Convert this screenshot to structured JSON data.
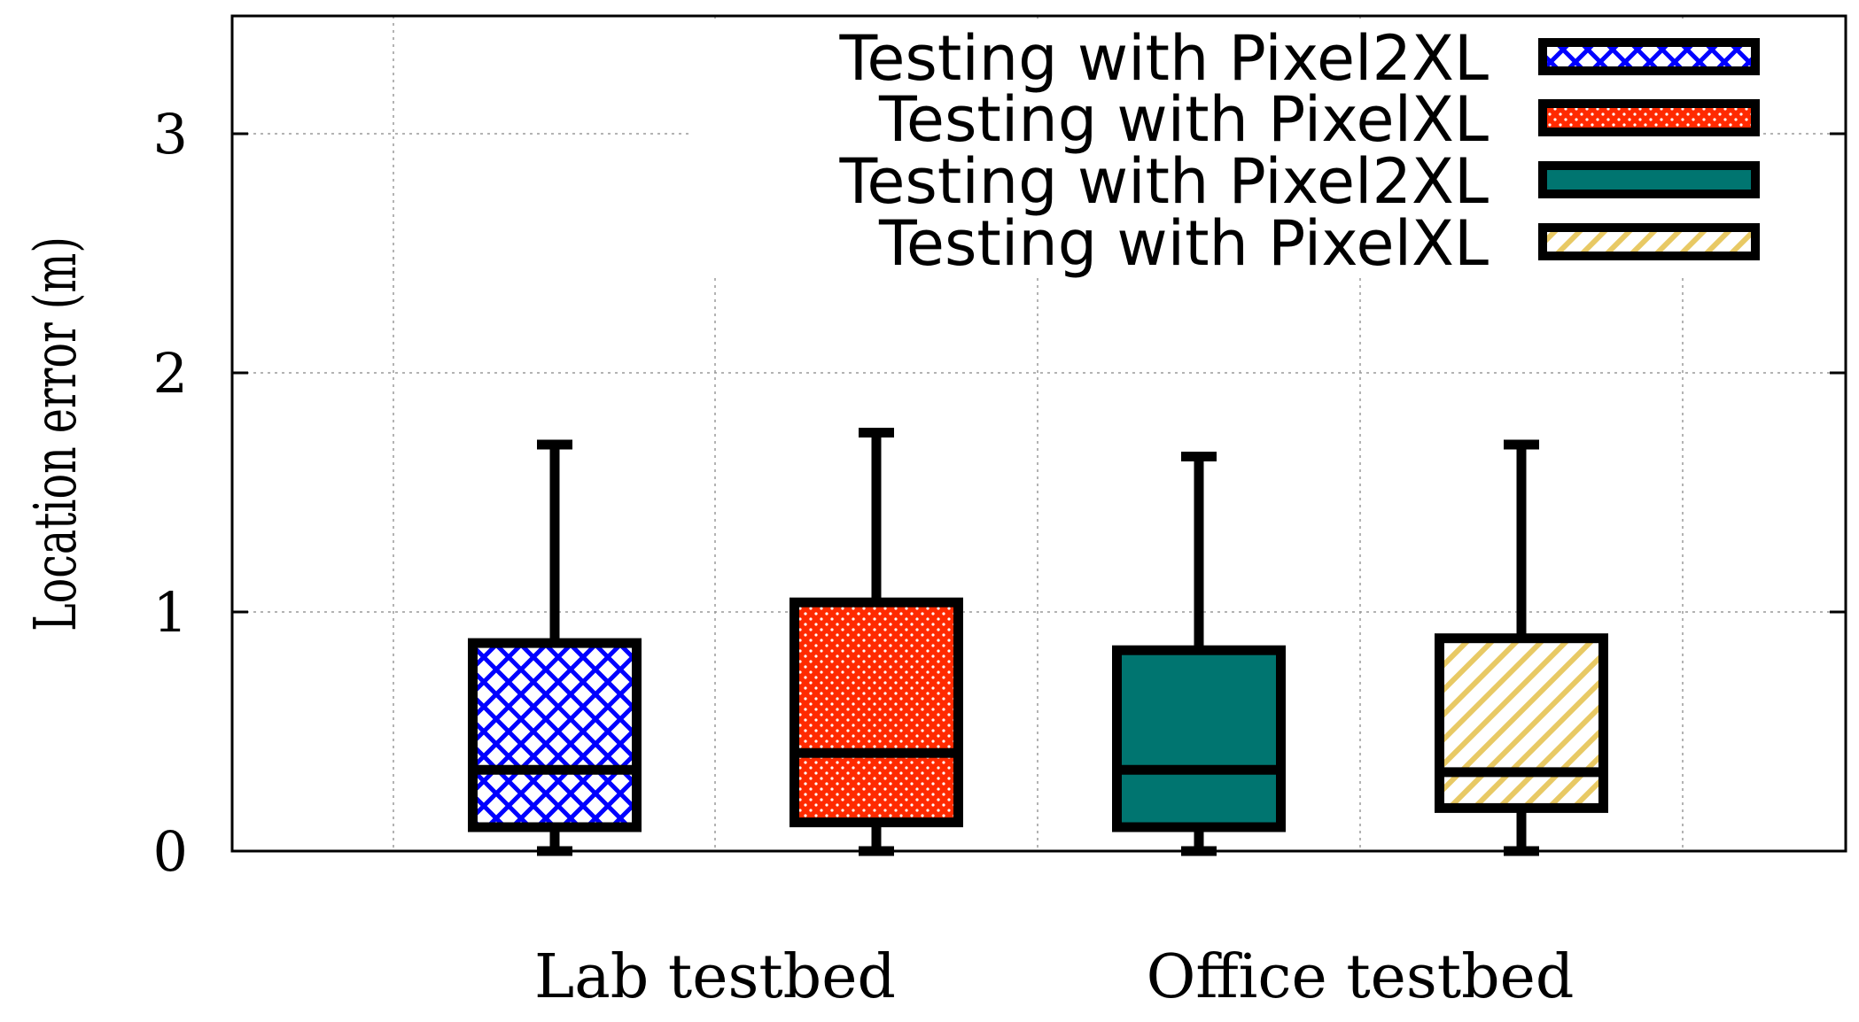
{
  "chart_data": {
    "type": "boxplot",
    "ylabel": "Location error (m)",
    "xlabel": "",
    "ylim": [
      0,
      3.5
    ],
    "yticks": [
      0,
      1,
      2,
      3
    ],
    "grid": true,
    "legend_position": "top-right",
    "groups": [
      "Lab testbed",
      "Office testbed"
    ],
    "series": [
      {
        "name": "Testing with Pixel2XL",
        "group": "Lab testbed",
        "pattern": "crosshatch",
        "color": "#0000ff",
        "min": 0,
        "q1": 0.1,
        "median": 0.34,
        "q3": 0.87,
        "max": 1.7
      },
      {
        "name": "Testing with PixelXL",
        "group": "Lab testbed",
        "pattern": "dots",
        "color": "#ff2a00",
        "min": 0,
        "q1": 0.12,
        "median": 0.41,
        "q3": 1.04,
        "max": 1.75
      },
      {
        "name": "Testing with Pixel2XL",
        "group": "Office testbed",
        "pattern": "solid",
        "color": "#007570",
        "min": 0,
        "q1": 0.1,
        "median": 0.34,
        "q3": 0.84,
        "max": 1.65
      },
      {
        "name": "Testing with PixelXL",
        "group": "Office testbed",
        "pattern": "diagonal",
        "color": "#e8c964",
        "min": 0,
        "q1": 0.18,
        "median": 0.33,
        "q3": 0.89,
        "max": 1.7
      }
    ]
  }
}
